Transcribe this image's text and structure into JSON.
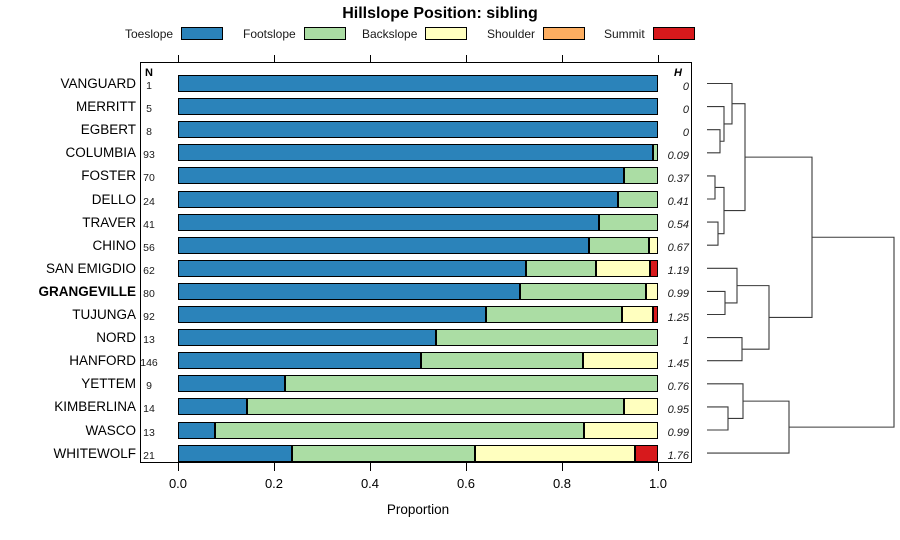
{
  "title": "Hillslope Position: sibling",
  "legend": [
    {
      "label": "Toeslope",
      "color": "#2B83BA"
    },
    {
      "label": "Footslope",
      "color": "#ABDDA4"
    },
    {
      "label": "Backslope",
      "color": "#FFFFBF"
    },
    {
      "label": "Shoulder",
      "color": "#FDAE61"
    },
    {
      "label": "Summit",
      "color": "#D7191C"
    }
  ],
  "columns": {
    "n_header": "N",
    "h_header": "H"
  },
  "axis": {
    "ticks": [
      "0.0",
      "0.2",
      "0.4",
      "0.6",
      "0.8",
      "1.0"
    ],
    "label": "Proportion",
    "xlim": [
      0,
      1
    ]
  },
  "chart_data": {
    "type": "bar",
    "orientation": "horizontal-stacked",
    "stack_order": [
      "Toeslope",
      "Footslope",
      "Backslope",
      "Shoulder",
      "Summit"
    ],
    "colors": [
      "#2B83BA",
      "#ABDDA4",
      "#FFFFBF",
      "#FDAE61",
      "#D7191C"
    ],
    "xlabel": "Proportion",
    "xlim": [
      0,
      1
    ],
    "rows": [
      {
        "name": "VANGUARD",
        "n": "1",
        "h": "0",
        "bold": false,
        "proportions": [
          1,
          0,
          0,
          0,
          0
        ]
      },
      {
        "name": "MERRITT",
        "n": "5",
        "h": "0",
        "bold": false,
        "proportions": [
          1,
          0,
          0,
          0,
          0
        ]
      },
      {
        "name": "EGBERT",
        "n": "8",
        "h": "0",
        "bold": false,
        "proportions": [
          1,
          0,
          0,
          0,
          0
        ]
      },
      {
        "name": "COLUMBIA",
        "n": "93",
        "h": "0.09",
        "bold": false,
        "proportions": [
          0.989,
          0.011,
          0,
          0,
          0
        ]
      },
      {
        "name": "FOSTER",
        "n": "70",
        "h": "0.37",
        "bold": false,
        "proportions": [
          0.93,
          0.07,
          0,
          0,
          0
        ]
      },
      {
        "name": "DELLO",
        "n": "24",
        "h": "0.41",
        "bold": false,
        "proportions": [
          0.917,
          0.083,
          0,
          0,
          0
        ]
      },
      {
        "name": "TRAVER",
        "n": "41",
        "h": "0.54",
        "bold": false,
        "proportions": [
          0.878,
          0.122,
          0,
          0,
          0
        ]
      },
      {
        "name": "CHINO",
        "n": "56",
        "h": "0.67",
        "bold": false,
        "proportions": [
          0.857,
          0.125,
          0.018,
          0,
          0
        ]
      },
      {
        "name": "SAN EMIGDIO",
        "n": "62",
        "h": "1.19",
        "bold": false,
        "proportions": [
          0.726,
          0.145,
          0.113,
          0,
          0.016
        ]
      },
      {
        "name": "GRANGEVILLE",
        "n": "80",
        "h": "0.99",
        "bold": true,
        "proportions": [
          0.712,
          0.263,
          0.025,
          0,
          0
        ]
      },
      {
        "name": "TUJUNGA",
        "n": "92",
        "h": "1.25",
        "bold": false,
        "proportions": [
          0.641,
          0.283,
          0.065,
          0,
          0.011
        ]
      },
      {
        "name": "NORD",
        "n": "13",
        "h": "1",
        "bold": false,
        "proportions": [
          0.538,
          0.462,
          0,
          0,
          0
        ]
      },
      {
        "name": "HANFORD",
        "n": "146",
        "h": "1.45",
        "bold": false,
        "proportions": [
          0.507,
          0.336,
          0.157,
          0,
          0
        ]
      },
      {
        "name": "YETTEM",
        "n": "9",
        "h": "0.76",
        "bold": false,
        "proportions": [
          0.222,
          0.778,
          0,
          0,
          0
        ]
      },
      {
        "name": "KIMBERLINA",
        "n": "14",
        "h": "0.95",
        "bold": false,
        "proportions": [
          0.143,
          0.786,
          0.071,
          0,
          0
        ]
      },
      {
        "name": "WASCO",
        "n": "13",
        "h": "0.99",
        "bold": false,
        "proportions": [
          0.077,
          0.769,
          0.154,
          0,
          0
        ]
      },
      {
        "name": "WHITEWOLF",
        "n": "21",
        "h": "1.76",
        "bold": false,
        "proportions": [
          0.238,
          0.381,
          0.333,
          0,
          0.048
        ]
      }
    ]
  },
  "dendrogram": {
    "leaf_x": 707,
    "line_color": "#3a3a3a",
    "merges": [
      {
        "id": "m0",
        "children": [
          2,
          3
        ],
        "x": 720
      },
      {
        "id": "m1",
        "children": [
          1,
          "m0"
        ],
        "x": 724
      },
      {
        "id": "m2",
        "children": [
          0,
          "m1"
        ],
        "x": 732
      },
      {
        "id": "m3",
        "children": [
          4,
          5
        ],
        "x": 715
      },
      {
        "id": "m4",
        "children": [
          6,
          7
        ],
        "x": 718
      },
      {
        "id": "m5",
        "children": [
          "m3",
          "m4"
        ],
        "x": 724
      },
      {
        "id": "m6",
        "children": [
          "m2",
          "m5"
        ],
        "x": 745
      },
      {
        "id": "m7",
        "children": [
          9,
          10
        ],
        "x": 725
      },
      {
        "id": "m8",
        "children": [
          8,
          "m7"
        ],
        "x": 737
      },
      {
        "id": "m9",
        "children": [
          11,
          12
        ],
        "x": 742
      },
      {
        "id": "m10",
        "children": [
          "m8",
          "m9"
        ],
        "x": 769
      },
      {
        "id": "m11",
        "children": [
          "m6",
          "m10"
        ],
        "x": 812
      },
      {
        "id": "m12",
        "children": [
          14,
          15
        ],
        "x": 728
      },
      {
        "id": "m13",
        "children": [
          13,
          "m12"
        ],
        "x": 743
      },
      {
        "id": "m14",
        "children": [
          "m13",
          16
        ],
        "x": 789
      },
      {
        "id": "m15",
        "children": [
          "m11",
          "m14"
        ],
        "x": 894
      }
    ]
  }
}
